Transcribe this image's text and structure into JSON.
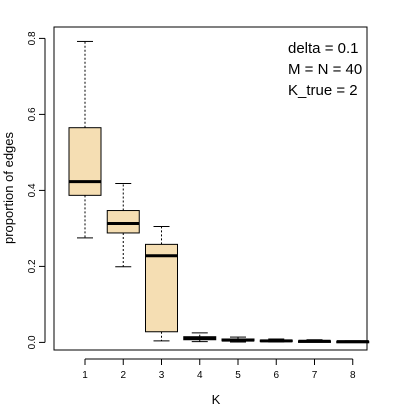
{
  "chart_data": {
    "type": "boxplot",
    "xlabel": "K",
    "ylabel": "proportion of edges",
    "categories": [
      "1",
      "2",
      "3",
      "4",
      "5",
      "6",
      "7",
      "8"
    ],
    "ylim": [
      -0.02,
      0.83
    ],
    "yticks": [
      0.0,
      0.2,
      0.4,
      0.6,
      0.8
    ],
    "ytick_labels": [
      "0.0",
      "0.2",
      "0.4",
      "0.6",
      "0.8"
    ],
    "grid": false,
    "box_fill": "#f5deb3",
    "annotations": [
      "delta = 0.1",
      "M = N = 40",
      "K_true = 2"
    ],
    "boxes": [
      {
        "category": "1",
        "whisker_low": 0.275,
        "q1": 0.387,
        "median": 0.423,
        "q3": 0.565,
        "whisker_high": 0.792
      },
      {
        "category": "2",
        "whisker_low": 0.199,
        "q1": 0.288,
        "median": 0.313,
        "q3": 0.347,
        "whisker_high": 0.418
      },
      {
        "category": "3",
        "whisker_low": 0.004,
        "q1": 0.028,
        "median": 0.228,
        "q3": 0.258,
        "whisker_high": 0.305
      },
      {
        "category": "4",
        "whisker_low": 0.002,
        "q1": 0.007,
        "median": 0.011,
        "q3": 0.015,
        "whisker_high": 0.025
      },
      {
        "category": "5",
        "whisker_low": 0.001,
        "q1": 0.004,
        "median": 0.006,
        "q3": 0.009,
        "whisker_high": 0.014
      },
      {
        "category": "6",
        "whisker_low": 0.001,
        "q1": 0.003,
        "median": 0.004,
        "q3": 0.006,
        "whisker_high": 0.009
      },
      {
        "category": "7",
        "whisker_low": 0.001,
        "q1": 0.002,
        "median": 0.003,
        "q3": 0.004,
        "whisker_high": 0.007
      },
      {
        "category": "8",
        "whisker_low": 0.0,
        "q1": 0.001,
        "median": 0.002,
        "q3": 0.003,
        "whisker_high": 0.004
      }
    ]
  }
}
